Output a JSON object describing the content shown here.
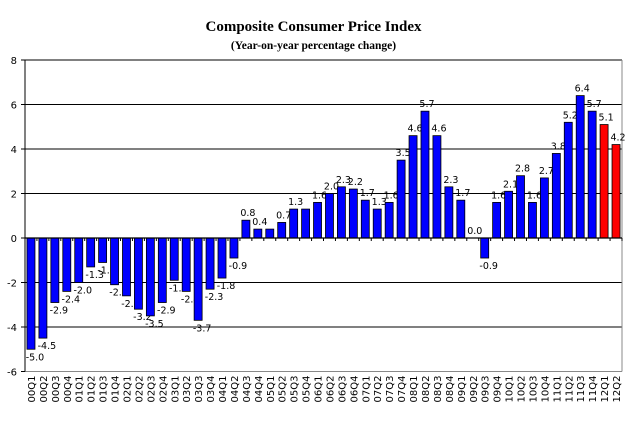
{
  "chart_data": {
    "type": "bar",
    "title": "Composite Consumer Price Index",
    "subtitle": "(Year-on-year percentage change)",
    "xlabel": "",
    "ylabel": "",
    "ylim": [
      -6,
      8
    ],
    "yticks": [
      -6,
      -4,
      -2,
      0,
      2,
      4,
      6,
      8
    ],
    "grid": true,
    "legend": "none",
    "categories": [
      "00Q1",
      "00Q2",
      "00Q3",
      "00Q4",
      "01Q1",
      "01Q2",
      "01Q3",
      "01Q4",
      "02Q1",
      "02Q2",
      "02Q3",
      "02Q4",
      "03Q1",
      "03Q2",
      "03Q3",
      "03Q4",
      "04Q1",
      "04Q2",
      "04Q3",
      "04Q4",
      "05Q1",
      "05Q2",
      "05Q3",
      "05Q4",
      "06Q1",
      "06Q2",
      "06Q3",
      "06Q4",
      "07Q1",
      "07Q2",
      "07Q3",
      "07Q4",
      "08Q1",
      "08Q2",
      "08Q3",
      "08Q4",
      "09Q1",
      "09Q2",
      "09Q3",
      "09Q4",
      "10Q1",
      "10Q2",
      "10Q3",
      "10Q4",
      "11Q1",
      "11Q2",
      "11Q3",
      "11Q4",
      "12Q1",
      "12Q2"
    ],
    "values": [
      -5.0,
      -4.5,
      -2.9,
      -2.4,
      -2.0,
      -1.3,
      -1.1,
      -2.1,
      -2.6,
      -3.2,
      -3.5,
      -2.9,
      -1.9,
      -2.4,
      -3.7,
      -2.3,
      -1.8,
      -0.9,
      0.8,
      0.4,
      0.4,
      0.7,
      1.3,
      1.3,
      1.6,
      2.0,
      2.3,
      2.2,
      1.7,
      1.3,
      1.6,
      3.5,
      4.6,
      5.7,
      4.6,
      2.3,
      1.7,
      0.0,
      -0.9,
      1.6,
      2.1,
      2.8,
      1.6,
      2.7,
      3.8,
      5.2,
      6.4,
      5.7,
      5.1,
      4.2
    ],
    "data_labels": [
      "-5.0",
      "-4.5",
      "-2.9",
      "-2.4",
      "-2.0",
      "-1.3",
      "-1.1",
      "-2.1",
      "-2.6",
      "-3.2",
      "-3.5",
      "-2.9",
      "-1.9",
      "-2.4",
      "-3.7",
      "-2.3",
      "-1.8",
      "-0.9",
      "0.8",
      "0.4",
      null,
      "0.7",
      "1.3",
      null,
      "1.6",
      "2.0",
      "2.3",
      "2.2",
      "1.7",
      "1.3",
      "1.6",
      "3.5",
      "4.6",
      "5.7",
      "4.6",
      "2.3",
      "1.7",
      "0.0",
      "-0.9",
      "1.6",
      "2.1",
      "2.8",
      "1.6",
      "2.7",
      "3.8",
      "5.2",
      "6.4",
      "5.7",
      "5.1",
      "4.2"
    ],
    "highlighted_categories": [
      "12Q1",
      "12Q2"
    ],
    "colors": {
      "default": "#0000FF",
      "highlight": "#FF0000"
    }
  }
}
